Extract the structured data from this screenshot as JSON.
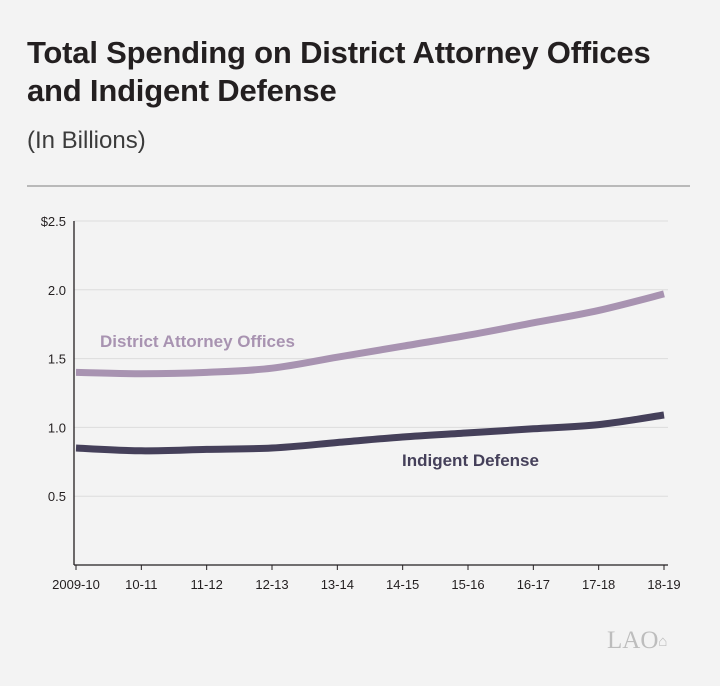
{
  "chart_data": {
    "type": "line",
    "title": "Total Spending on District Attorney Offices and Indigent Defense",
    "subtitle": "(In Billions)",
    "categories": [
      "2009-10",
      "10-11",
      "11-12",
      "12-13",
      "13-14",
      "14-15",
      "15-16",
      "16-17",
      "17-18",
      "18-19"
    ],
    "y_ticks": [
      "$2.5",
      "2.0",
      "1.5",
      "1.0",
      "0.5"
    ],
    "ylim": [
      0,
      2.5
    ],
    "grid": true,
    "series": [
      {
        "name": "District Attorney Offices",
        "color": "#a893b1",
        "values": [
          1.4,
          1.39,
          1.4,
          1.43,
          1.51,
          1.59,
          1.67,
          1.76,
          1.85,
          1.97
        ]
      },
      {
        "name": "Indigent Defense",
        "color": "#45405a",
        "values": [
          0.85,
          0.83,
          0.84,
          0.85,
          0.89,
          0.93,
          0.96,
          0.99,
          1.02,
          1.09
        ]
      }
    ]
  },
  "logo_text": "LAO"
}
